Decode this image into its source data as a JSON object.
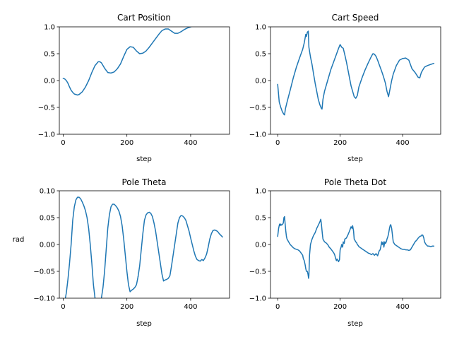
{
  "colors": {
    "series": "#1f77b4"
  },
  "chart_data": [
    {
      "type": "line",
      "title": "Cart Position",
      "xlabel": "step",
      "ylabel": "",
      "xlim": [
        -12,
        522
      ],
      "ylim": [
        -1.0,
        1.0
      ],
      "xticks": [
        0,
        200,
        400
      ],
      "xtick_labels": [
        "0",
        "200",
        "400"
      ],
      "yticks": [
        -1.0,
        -0.5,
        0.0,
        0.5,
        1.0
      ],
      "ytick_labels": [
        "−1.0",
        "−0.5",
        "0.0",
        "0.5",
        "1.0"
      ],
      "grid": false,
      "x": [
        0,
        5,
        10,
        15,
        20,
        25,
        30,
        35,
        40,
        45,
        50,
        60,
        70,
        80,
        90,
        100,
        110,
        115,
        120,
        130,
        140,
        150,
        160,
        170,
        180,
        190,
        200,
        210,
        220,
        230,
        240,
        250,
        260,
        270,
        280,
        290,
        300,
        310,
        320,
        330,
        340,
        350,
        360,
        370,
        380,
        390,
        400,
        405
      ],
      "y": [
        0.04,
        0.03,
        0.0,
        -0.05,
        -0.12,
        -0.18,
        -0.22,
        -0.25,
        -0.26,
        -0.27,
        -0.26,
        -0.21,
        -0.12,
        0.0,
        0.15,
        0.28,
        0.35,
        0.35,
        0.33,
        0.23,
        0.15,
        0.14,
        0.16,
        0.22,
        0.31,
        0.45,
        0.58,
        0.63,
        0.62,
        0.55,
        0.5,
        0.51,
        0.55,
        0.62,
        0.7,
        0.78,
        0.86,
        0.93,
        0.96,
        0.96,
        0.92,
        0.88,
        0.88,
        0.91,
        0.95,
        0.98,
        1.0,
        1.01
      ]
    },
    {
      "type": "line",
      "title": "Cart Speed",
      "xlabel": "step",
      "ylabel": "",
      "xlim": [
        -23,
        522
      ],
      "ylim": [
        -1.0,
        1.0
      ],
      "xticks": [
        0,
        200,
        400
      ],
      "xtick_labels": [
        "0",
        "200",
        "400"
      ],
      "yticks": [
        -1.0,
        -0.5,
        0.0,
        0.5,
        1.0
      ],
      "ytick_labels": [
        "−1.0",
        "−0.5",
        "0.0",
        "0.5",
        "1.0"
      ],
      "grid": false,
      "x": [
        0,
        5,
        10,
        15,
        20,
        22,
        25,
        30,
        40,
        50,
        60,
        70,
        80,
        85,
        90,
        92,
        95,
        98,
        100,
        105,
        110,
        115,
        120,
        125,
        130,
        135,
        140,
        142,
        145,
        150,
        160,
        170,
        180,
        190,
        195,
        200,
        205,
        210,
        215,
        220,
        225,
        230,
        235,
        240,
        245,
        250,
        255,
        260,
        270,
        280,
        290,
        300,
        305,
        310,
        315,
        320,
        325,
        330,
        335,
        340,
        345,
        350,
        355,
        360,
        365,
        370,
        380,
        390,
        400,
        410,
        420,
        425,
        430,
        440,
        450,
        455,
        460,
        465,
        470,
        480,
        490,
        500
      ],
      "y": [
        -0.07,
        -0.4,
        -0.5,
        -0.58,
        -0.63,
        -0.64,
        -0.52,
        -0.4,
        -0.18,
        0.05,
        0.25,
        0.42,
        0.58,
        0.7,
        0.86,
        0.82,
        0.9,
        0.92,
        0.62,
        0.44,
        0.3,
        0.12,
        -0.05,
        -0.2,
        -0.35,
        -0.45,
        -0.52,
        -0.53,
        -0.35,
        -0.2,
        0.0,
        0.2,
        0.36,
        0.52,
        0.6,
        0.67,
        0.62,
        0.6,
        0.48,
        0.35,
        0.2,
        0.05,
        -0.1,
        -0.2,
        -0.3,
        -0.33,
        -0.28,
        -0.12,
        0.05,
        0.2,
        0.33,
        0.45,
        0.5,
        0.49,
        0.45,
        0.38,
        0.3,
        0.22,
        0.14,
        0.05,
        -0.05,
        -0.2,
        -0.3,
        -0.15,
        0.0,
        0.12,
        0.28,
        0.38,
        0.41,
        0.42,
        0.38,
        0.3,
        0.22,
        0.15,
        0.06,
        0.05,
        0.15,
        0.2,
        0.25,
        0.28,
        0.3,
        0.32
      ]
    },
    {
      "type": "line",
      "title": "Pole Theta",
      "xlabel": "step",
      "ylabel": "rad",
      "xlim": [
        -12,
        522
      ],
      "ylim": [
        -0.1,
        0.1
      ],
      "xticks": [
        0,
        200,
        400
      ],
      "xtick_labels": [
        "0",
        "200",
        "400"
      ],
      "yticks": [
        -0.1,
        -0.05,
        0.0,
        0.05,
        0.1
      ],
      "ytick_labels": [
        "−0.10",
        "−0.05",
        "0.00",
        "0.05",
        "0.10"
      ],
      "grid": false,
      "segments": [
        {
          "x": [
            7,
            10,
            15,
            20,
            25,
            30,
            35,
            40,
            45,
            50,
            55,
            60,
            65,
            70,
            75,
            80,
            85,
            90,
            95,
            100
          ],
          "y": [
            -0.1,
            -0.09,
            -0.065,
            -0.035,
            0.0,
            0.045,
            0.07,
            0.083,
            0.088,
            0.088,
            0.085,
            0.079,
            0.072,
            0.063,
            0.05,
            0.03,
            0.0,
            -0.035,
            -0.075,
            -0.1
          ]
        },
        {
          "x": [
            120,
            125,
            130,
            135,
            140,
            145,
            150,
            155,
            160,
            165,
            170,
            175,
            180,
            185,
            190,
            195,
            200,
            205,
            210,
            215,
            220,
            225,
            230,
            235
          ],
          "y": [
            -0.1,
            -0.08,
            -0.05,
            -0.01,
            0.03,
            0.055,
            0.07,
            0.075,
            0.075,
            0.072,
            0.068,
            0.062,
            0.052,
            0.035,
            0.01,
            -0.02,
            -0.05,
            -0.075,
            -0.088,
            -0.085,
            -0.083,
            -0.08,
            -0.075,
            -0.06
          ]
        },
        {
          "x": [
            235,
            240,
            245,
            250,
            255,
            260,
            265,
            270,
            275,
            280,
            285,
            290,
            295,
            300,
            305,
            310,
            315,
            320,
            325,
            330,
            335,
            340,
            345,
            350,
            355,
            360,
            365,
            370,
            375,
            380,
            385,
            390,
            395,
            400,
            405,
            410,
            415,
            420,
            425,
            430,
            435,
            440,
            445,
            450,
            455,
            460,
            465,
            470,
            475,
            480,
            485,
            490,
            495,
            500
          ],
          "y": [
            -0.06,
            -0.04,
            -0.01,
            0.02,
            0.045,
            0.055,
            0.059,
            0.06,
            0.058,
            0.052,
            0.04,
            0.025,
            0.005,
            -0.015,
            -0.035,
            -0.055,
            -0.068,
            -0.066,
            -0.065,
            -0.063,
            -0.058,
            -0.04,
            -0.02,
            0.0,
            0.02,
            0.04,
            0.05,
            0.054,
            0.053,
            0.05,
            0.045,
            0.035,
            0.025,
            0.012,
            0.0,
            -0.012,
            -0.022,
            -0.028,
            -0.03,
            -0.031,
            -0.028,
            -0.03,
            -0.025,
            -0.018,
            -0.005,
            0.01,
            0.02,
            0.026,
            0.027,
            0.026,
            0.024,
            0.02,
            0.017,
            0.014
          ]
        }
      ]
    },
    {
      "type": "line",
      "title": "Pole Theta Dot",
      "xlabel": "step",
      "ylabel": "",
      "xlim": [
        -23,
        522
      ],
      "ylim": [
        -1.0,
        1.0
      ],
      "xticks": [
        0,
        200,
        400
      ],
      "xtick_labels": [
        "0",
        "200",
        "400"
      ],
      "yticks": [
        -1.0,
        -0.5,
        0.0,
        0.5,
        1.0
      ],
      "ytick_labels": [
        "−1.0",
        "−0.5",
        "0.0",
        "0.5",
        "1.0"
      ],
      "grid": false,
      "x": [
        0,
        3,
        6,
        8,
        10,
        12,
        15,
        18,
        20,
        22,
        24,
        26,
        28,
        30,
        35,
        40,
        45,
        50,
        55,
        60,
        65,
        70,
        75,
        80,
        82,
        85,
        88,
        90,
        92,
        95,
        97,
        99,
        100,
        102,
        105,
        110,
        115,
        120,
        125,
        130,
        135,
        138,
        140,
        143,
        145,
        150,
        155,
        160,
        165,
        170,
        175,
        180,
        183,
        185,
        188,
        190,
        193,
        195,
        198,
        200,
        203,
        205,
        208,
        210,
        213,
        215,
        220,
        225,
        230,
        233,
        235,
        238,
        240,
        243,
        245,
        248,
        250,
        253,
        255,
        258,
        260,
        265,
        270,
        275,
        280,
        285,
        290,
        295,
        300,
        305,
        310,
        315,
        320,
        325,
        328,
        330,
        333,
        335,
        338,
        340,
        343,
        345,
        348,
        350,
        353,
        355,
        358,
        360,
        362,
        365,
        368,
        370,
        375,
        380,
        385,
        390,
        395,
        400,
        405,
        410,
        415,
        420,
        425,
        430,
        435,
        440,
        445,
        450,
        455,
        460,
        462,
        465,
        468,
        470,
        475,
        480,
        485,
        490,
        495,
        500
      ],
      "y": [
        0.15,
        0.3,
        0.38,
        0.35,
        0.38,
        0.36,
        0.37,
        0.4,
        0.5,
        0.52,
        0.38,
        0.25,
        0.15,
        0.1,
        0.05,
        0.0,
        -0.03,
        -0.06,
        -0.08,
        -0.09,
        -0.1,
        -0.12,
        -0.16,
        -0.2,
        -0.26,
        -0.3,
        -0.38,
        -0.45,
        -0.5,
        -0.5,
        -0.55,
        -0.63,
        -0.58,
        -0.2,
        0.0,
        0.1,
        0.17,
        0.22,
        0.3,
        0.36,
        0.42,
        0.47,
        0.38,
        0.2,
        0.1,
        0.05,
        0.03,
        0.0,
        -0.05,
        -0.08,
        -0.12,
        -0.16,
        -0.2,
        -0.25,
        -0.3,
        -0.27,
        -0.3,
        -0.32,
        -0.28,
        -0.1,
        -0.05,
        0.0,
        -0.05,
        0.05,
        0.02,
        0.1,
        0.12,
        0.18,
        0.25,
        0.3,
        0.33,
        0.3,
        0.35,
        0.25,
        0.1,
        0.07,
        0.05,
        0.03,
        0.0,
        -0.02,
        -0.04,
        -0.06,
        -0.08,
        -0.1,
        -0.12,
        -0.14,
        -0.16,
        -0.17,
        -0.19,
        -0.17,
        -0.2,
        -0.17,
        -0.21,
        -0.12,
        -0.1,
        -0.05,
        0.05,
        0.0,
        0.05,
        -0.05,
        0.05,
        0.02,
        0.05,
        0.1,
        0.15,
        0.2,
        0.3,
        0.35,
        0.37,
        0.3,
        0.15,
        0.05,
        0.0,
        -0.02,
        -0.04,
        -0.06,
        -0.08,
        -0.09,
        -0.09,
        -0.1,
        -0.1,
        -0.11,
        -0.1,
        -0.05,
        0.0,
        0.05,
        0.08,
        0.12,
        0.15,
        0.16,
        0.18,
        0.17,
        0.12,
        0.05,
        0.0,
        -0.03,
        -0.03,
        -0.04,
        -0.03,
        -0.03
      ]
    }
  ]
}
